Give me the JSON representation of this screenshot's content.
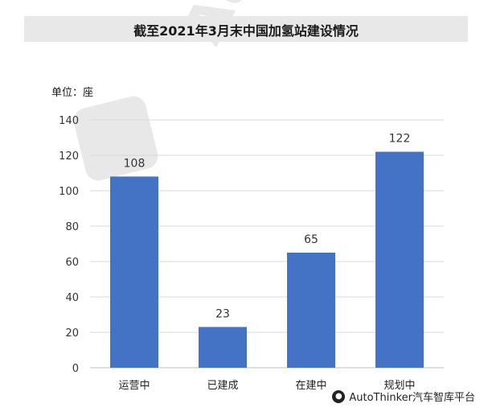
{
  "header": {
    "title": "截至2021年3月末中国加氢站建设情况"
  },
  "unit_label": "单位：座",
  "watermark": {
    "text": "AutoThinker汽车智库平台"
  },
  "colors": {
    "bar": "#4472c4",
    "grid": "#d9d9d9",
    "title_bg": "#e8e8e8"
  },
  "chart_data": {
    "type": "bar",
    "title": "截至2021年3月末中国加氢站建设情况",
    "categories": [
      "运营中",
      "已建成",
      "在建中",
      "规划中"
    ],
    "values": [
      108,
      23,
      65,
      122
    ],
    "ylabel": "单位：座",
    "ylim": [
      0,
      140
    ],
    "yticks": [
      0,
      20,
      40,
      60,
      80,
      100,
      120,
      140
    ],
    "grid": true,
    "legend": "none"
  }
}
